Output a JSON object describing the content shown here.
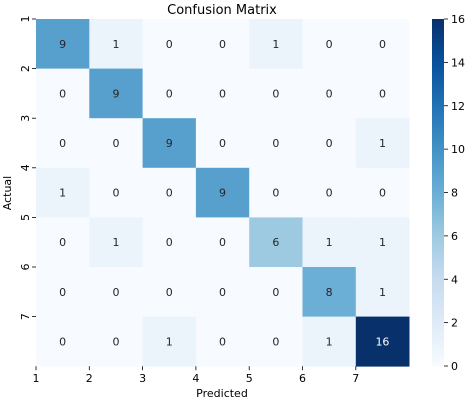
{
  "chart_data": {
    "type": "heatmap",
    "title": "Confusion Matrix",
    "xlabel": "Predicted",
    "ylabel": "Actual",
    "x_ticks": [
      "1",
      "2",
      "3",
      "4",
      "5",
      "6",
      "7"
    ],
    "y_ticks": [
      "1",
      "2",
      "3",
      "4",
      "5",
      "6",
      "7"
    ],
    "matrix": [
      [
        9,
        1,
        0,
        0,
        1,
        0,
        0
      ],
      [
        0,
        9,
        0,
        0,
        0,
        0,
        0
      ],
      [
        0,
        0,
        9,
        0,
        0,
        0,
        1
      ],
      [
        1,
        0,
        0,
        9,
        0,
        0,
        0
      ],
      [
        0,
        1,
        0,
        0,
        6,
        1,
        1
      ],
      [
        0,
        0,
        0,
        0,
        0,
        8,
        1
      ],
      [
        0,
        0,
        1,
        0,
        0,
        1,
        16
      ]
    ],
    "colorbar": {
      "min": 0,
      "max": 16,
      "ticks": [
        "0",
        "2",
        "4",
        "6",
        "8",
        "10",
        "12",
        "14",
        "16"
      ]
    },
    "colormap": "Blues"
  }
}
